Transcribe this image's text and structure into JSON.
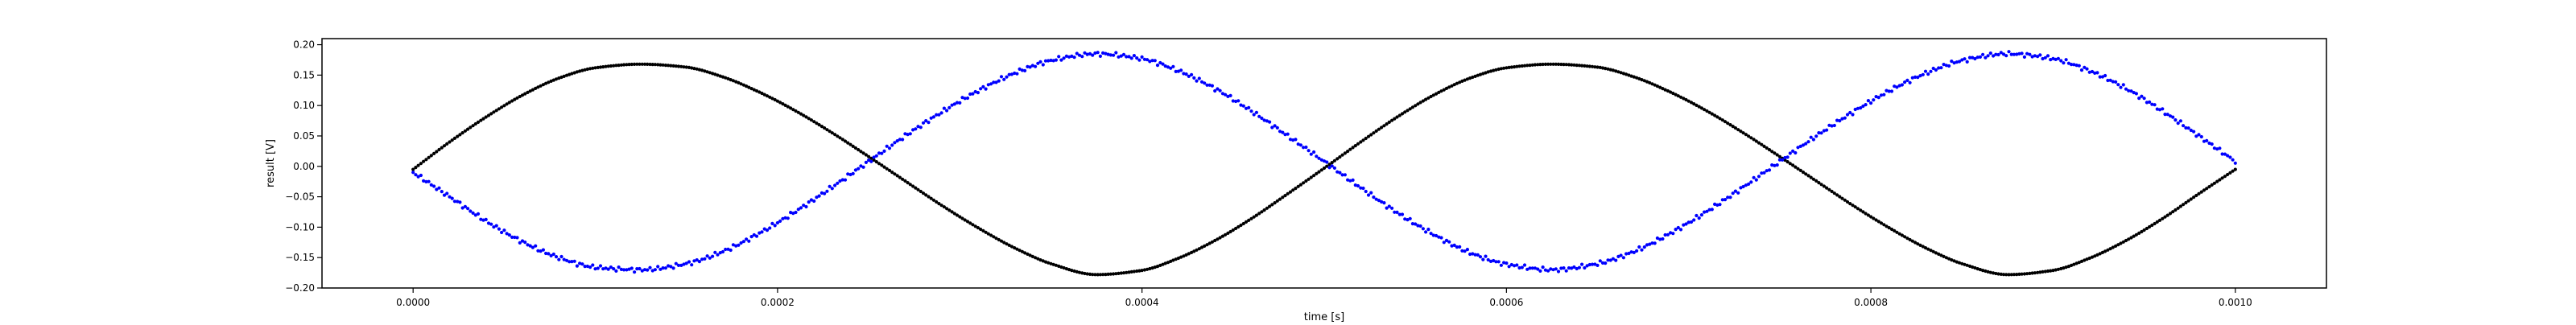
{
  "chart_data": {
    "type": "scatter",
    "title": "",
    "xlabel": "time [s]",
    "ylabel": "result [V]",
    "xlim": [
      -5e-05,
      0.00105
    ],
    "ylim": [
      -0.2,
      0.21
    ],
    "grid": false,
    "x_ticks": [
      0.0,
      0.0002,
      0.0004,
      0.0006,
      0.0008,
      0.001
    ],
    "x_tick_labels": [
      "0.0000",
      "0.0002",
      "0.0004",
      "0.0006",
      "0.0008",
      "0.0010"
    ],
    "y_ticks": [
      -0.2,
      -0.15,
      -0.1,
      -0.05,
      0.0,
      0.05,
      0.1,
      0.15,
      0.2
    ],
    "y_tick_labels": [
      "−0.20",
      "−0.15",
      "−0.10",
      "−0.05",
      "0.00",
      "0.05",
      "0.10",
      "0.15",
      "0.20"
    ],
    "series": [
      {
        "color": "#000000",
        "marker": "dot",
        "x": [
          0.0,
          2e-05,
          4e-05,
          6e-05,
          8e-05,
          0.0001,
          0.000125,
          0.00015,
          0.00017,
          0.00019,
          0.00021,
          0.00023,
          0.00025,
          0.00027,
          0.00029,
          0.00031,
          0.00033,
          0.00035,
          0.000375,
          0.0004,
          0.00042,
          0.00044,
          0.00046,
          0.00048,
          0.0005,
          0.00052,
          0.00054,
          0.00056,
          0.00058,
          0.0006,
          0.000625,
          0.00065,
          0.00067,
          0.00069,
          0.00071,
          0.00073,
          0.00075,
          0.00077,
          0.00079,
          0.00081,
          0.00083,
          0.00085,
          0.000875,
          0.0009,
          0.00092,
          0.00094,
          0.00096,
          0.00098,
          0.001
        ],
        "y": [
          -0.005,
          0.04,
          0.081,
          0.117,
          0.145,
          0.162,
          0.168,
          0.163,
          0.147,
          0.122,
          0.091,
          0.055,
          0.016,
          -0.024,
          -0.064,
          -0.101,
          -0.134,
          -0.16,
          -0.178,
          -0.171,
          -0.151,
          -0.122,
          -0.086,
          -0.045,
          -0.003,
          0.04,
          0.081,
          0.117,
          0.145,
          0.162,
          0.168,
          0.163,
          0.147,
          0.122,
          0.091,
          0.055,
          0.016,
          -0.024,
          -0.064,
          -0.101,
          -0.134,
          -0.16,
          -0.178,
          -0.171,
          -0.151,
          -0.122,
          -0.086,
          -0.045,
          -0.005
        ]
      },
      {
        "color": "#0000ff",
        "marker": "dot",
        "x": [
          0.0,
          2e-05,
          4e-05,
          6e-05,
          8e-05,
          0.0001,
          0.000125,
          0.00015,
          0.00017,
          0.00019,
          0.00021,
          0.00023,
          0.00025,
          0.00027,
          0.00029,
          0.00031,
          0.00033,
          0.00035,
          0.000375,
          0.0004,
          0.00042,
          0.00044,
          0.00046,
          0.00048,
          0.0005,
          0.00052,
          0.00054,
          0.00056,
          0.00058,
          0.0006,
          0.000625,
          0.00065,
          0.00067,
          0.00069,
          0.00071,
          0.00073,
          0.00075,
          0.00077,
          0.00079,
          0.00081,
          0.00083,
          0.00085,
          0.000875,
          0.0009,
          0.00092,
          0.00094,
          0.00096,
          0.00098,
          0.001
        ],
        "y": [
          -0.01,
          -0.05,
          -0.09,
          -0.124,
          -0.15,
          -0.166,
          -0.17,
          -0.16,
          -0.14,
          -0.11,
          -0.074,
          -0.034,
          0.008,
          0.05,
          0.089,
          0.124,
          0.153,
          0.174,
          0.185,
          0.177,
          0.157,
          0.128,
          0.091,
          0.05,
          0.008,
          -0.035,
          -0.076,
          -0.112,
          -0.142,
          -0.161,
          -0.17,
          -0.16,
          -0.14,
          -0.11,
          -0.074,
          -0.034,
          0.008,
          0.05,
          0.089,
          0.124,
          0.153,
          0.174,
          0.185,
          0.177,
          0.157,
          0.128,
          0.091,
          0.05,
          0.008
        ]
      }
    ]
  }
}
